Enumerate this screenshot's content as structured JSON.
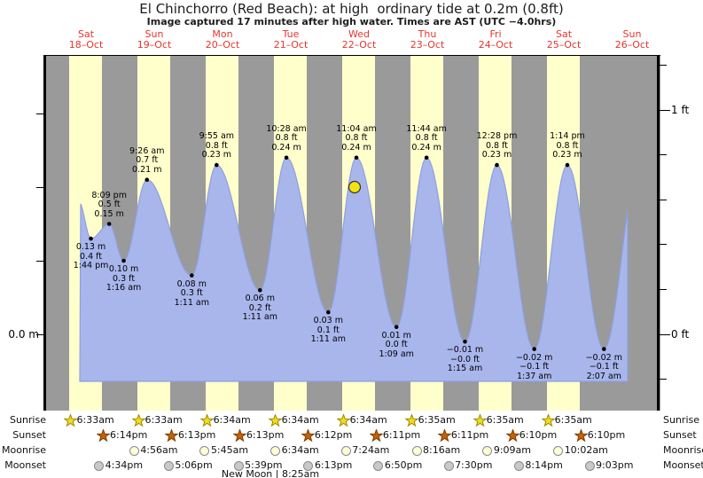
{
  "chart_data": {
    "type": "area",
    "title": "El Chinchorro (Red Beach): at high  ordinary tide at 0.2m (0.8ft)",
    "subtitle": "Image captured 17 minutes after high water. Times are AST (UTC −4.0hrs)",
    "days": [
      {
        "name": "Sat",
        "date": "18–Oct"
      },
      {
        "name": "Sun",
        "date": "19–Oct"
      },
      {
        "name": "Mon",
        "date": "20–Oct"
      },
      {
        "name": "Tue",
        "date": "21–Oct"
      },
      {
        "name": "Wed",
        "date": "22–Oct"
      },
      {
        "name": "Thu",
        "date": "23–Oct"
      },
      {
        "name": "Fri",
        "date": "24–Oct"
      },
      {
        "name": "Sat",
        "date": "25–Oct"
      },
      {
        "name": "Sun",
        "date": "26–Oct"
      }
    ],
    "y_axis_left": {
      "label": "0.0 m",
      "unit": "m",
      "ticks_m": [
        0.0,
        0.1,
        0.2,
        0.3
      ]
    },
    "y_axis_right": {
      "top_label": "1 ft",
      "bottom_label": "0 ft",
      "unit": "ft",
      "ticks_ft": [
        1.2,
        1.0,
        0.8,
        0.6,
        0.4,
        0.2,
        0.0,
        -0.2
      ]
    },
    "extremes": [
      {
        "type": "low",
        "day": 0,
        "time": "1:44 pm",
        "height_m": 0.13,
        "m_label": "0.13 m",
        "ft_label": "0.4 ft"
      },
      {
        "type": "high",
        "day": 0,
        "time": "8:09 pm",
        "height_m": 0.15,
        "m_label": "0.15 m",
        "ft_label": "0.5 ft"
      },
      {
        "type": "low",
        "day": 1,
        "time": "1:16 am",
        "height_m": 0.1,
        "m_label": "0.10 m",
        "ft_label": "0.3 ft"
      },
      {
        "type": "high",
        "day": 1,
        "time": "9:26 am",
        "height_m": 0.21,
        "m_label": "0.21 m",
        "ft_label": "0.7 ft"
      },
      {
        "type": "low",
        "day": 2,
        "time": "1:11 am",
        "height_m": 0.08,
        "m_label": "0.08 m",
        "ft_label": "0.3 ft"
      },
      {
        "type": "high",
        "day": 2,
        "time": "9:55 am",
        "height_m": 0.23,
        "m_label": "0.23 m",
        "ft_label": "0.8 ft"
      },
      {
        "type": "low",
        "day": 3,
        "time": "1:11 am",
        "height_m": 0.06,
        "m_label": "0.06 m",
        "ft_label": "0.2 ft"
      },
      {
        "type": "high",
        "day": 3,
        "time": "10:28 am",
        "height_m": 0.24,
        "m_label": "0.24 m",
        "ft_label": "0.8 ft"
      },
      {
        "type": "low",
        "day": 4,
        "time": "1:11 am",
        "height_m": 0.03,
        "m_label": "0.03 m",
        "ft_label": "0.1 ft"
      },
      {
        "type": "high",
        "day": 4,
        "time": "11:04 am",
        "height_m": 0.24,
        "m_label": "0.24 m",
        "ft_label": "0.8 ft"
      },
      {
        "type": "low",
        "day": 5,
        "time": "1:09 am",
        "height_m": 0.01,
        "m_label": "0.01 m",
        "ft_label": "0.0 ft"
      },
      {
        "type": "high",
        "day": 5,
        "time": "11:44 am",
        "height_m": 0.24,
        "m_label": "0.24 m",
        "ft_label": "0.8 ft"
      },
      {
        "type": "low",
        "day": 6,
        "time": "1:15 am",
        "height_m": -0.01,
        "m_label": "−0.01 m",
        "ft_label": "−0.0 ft"
      },
      {
        "type": "high",
        "day": 6,
        "time": "12:28 pm",
        "height_m": 0.23,
        "m_label": "0.23 m",
        "ft_label": "0.8 ft"
      },
      {
        "type": "low",
        "day": 7,
        "time": "1:37 am",
        "height_m": -0.02,
        "m_label": "−0.02 m",
        "ft_label": "−0.1 ft"
      },
      {
        "type": "high",
        "day": 7,
        "time": "1:14 pm",
        "height_m": 0.23,
        "m_label": "0.23 m",
        "ft_label": "0.8 ft"
      },
      {
        "type": "low",
        "day": 8,
        "time": "2:07 am",
        "height_m": -0.02,
        "m_label": "−0.02 m",
        "ft_label": "−0.1 ft"
      }
    ],
    "marker": {
      "description": "current tide level marker (17 min after high water)",
      "day": 4
    }
  },
  "astro": {
    "rows": [
      {
        "label": "Sunrise",
        "icon": "sunrise",
        "items": [
          {
            "day": 0,
            "time": "6:33am"
          },
          {
            "day": 1,
            "time": "6:33am"
          },
          {
            "day": 2,
            "time": "6:34am"
          },
          {
            "day": 3,
            "time": "6:34am"
          },
          {
            "day": 4,
            "time": "6:34am"
          },
          {
            "day": 5,
            "time": "6:35am"
          },
          {
            "day": 6,
            "time": "6:35am"
          },
          {
            "day": 7,
            "time": "6:35am"
          }
        ]
      },
      {
        "label": "Sunset",
        "icon": "sunset",
        "items": [
          {
            "day": 0,
            "time": "6:14pm"
          },
          {
            "day": 1,
            "time": "6:13pm"
          },
          {
            "day": 2,
            "time": "6:13pm"
          },
          {
            "day": 3,
            "time": "6:12pm"
          },
          {
            "day": 4,
            "time": "6:11pm"
          },
          {
            "day": 5,
            "time": "6:11pm"
          },
          {
            "day": 6,
            "time": "6:10pm"
          },
          {
            "day": 7,
            "time": "6:10pm"
          }
        ]
      },
      {
        "label": "Moonrise",
        "icon": "moonrise",
        "items": [
          {
            "day": 1,
            "time": "4:56am"
          },
          {
            "day": 2,
            "time": "5:45am"
          },
          {
            "day": 3,
            "time": "6:34am"
          },
          {
            "day": 4,
            "time": "7:24am"
          },
          {
            "day": 5,
            "time": "8:16am"
          },
          {
            "day": 6,
            "time": "9:09am"
          },
          {
            "day": 7,
            "time": "10:02am"
          }
        ]
      },
      {
        "label": "Moonset",
        "icon": "moonset",
        "items": [
          {
            "day": 0,
            "time": "4:34pm"
          },
          {
            "day": 1,
            "time": "5:06pm"
          },
          {
            "day": 2,
            "time": "5:39pm"
          },
          {
            "day": 3,
            "time": "6:13pm"
          },
          {
            "day": 4,
            "time": "6:50pm"
          },
          {
            "day": 5,
            "time": "7:30pm"
          },
          {
            "day": 6,
            "time": "8:14pm"
          },
          {
            "day": 7,
            "time": "9:03pm"
          }
        ]
      }
    ],
    "new_moon_note": "New Moon | 8:25am"
  },
  "colors": {
    "night_band": "#9a9a9a",
    "day_band": "#ffffcc",
    "tide_fill": "#a9b6ec",
    "tide_edge": "#8e9fdf",
    "date_red": "#e8352b",
    "marker_yellow": "#f2e40e",
    "sunrise_star": "#f5dc1e",
    "sunrise_star_edge": "#9a8a00",
    "sunset_star": "#c96100",
    "sunset_star_edge": "#7a3c00",
    "moonrise_circle": "#ffffd6",
    "moonset_circle": "#c9c9c9"
  }
}
